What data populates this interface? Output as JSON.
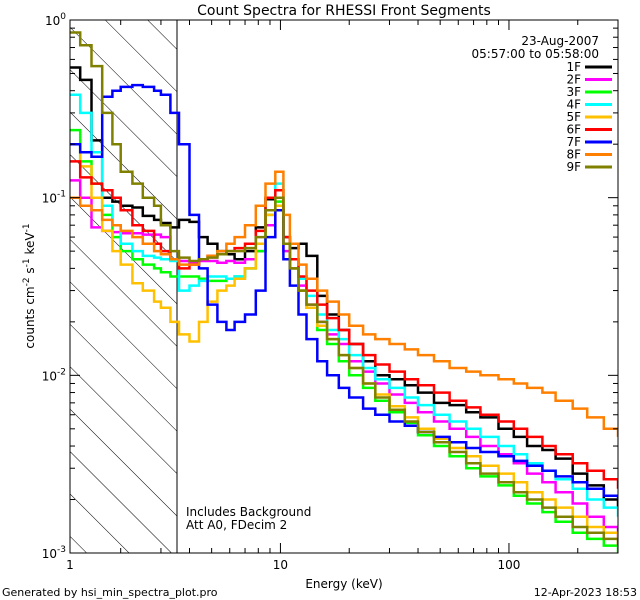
{
  "chart_data": {
    "type": "line",
    "title": "Count Spectra for RHESSI Front Segments",
    "xlabel": "Energy (keV)",
    "ylabel_parts": [
      "counts cm",
      "-2",
      " s",
      "-1",
      " keV",
      "-1"
    ],
    "xscale": "log",
    "yscale": "log",
    "xlim": [
      1.2,
      300
    ],
    "ylim": [
      0.001,
      1
    ],
    "x_tick_labels": [
      {
        "value": 1,
        "label": "1"
      },
      {
        "value": 10,
        "label": "10"
      },
      {
        "value": 100,
        "label": "100"
      }
    ],
    "y_tick_labels": [
      {
        "value": 1,
        "label": "10",
        "exp": "0"
      },
      {
        "value": 0.1,
        "label": "10",
        "exp": "-1"
      },
      {
        "value": 0.01,
        "label": "10",
        "exp": "-2"
      },
      {
        "value": 0.001,
        "label": "10",
        "exp": "-3"
      }
    ],
    "shaded_region": {
      "from": 1.2,
      "to": 3.0,
      "pattern": "diagonal-hatch"
    },
    "legend_header": [
      "23-Aug-2007",
      "05:57:00 to 05:58:00"
    ],
    "legend_position": "top-right",
    "annotations": [
      "Includes Background",
      "Att A0, FDecim 2"
    ],
    "footer_left": "Generated by hsi_min_spectra_plot.pro",
    "footer_right": "12-Apr-2023 18:53",
    "series": [
      {
        "name": "1F",
        "color": "#000000",
        "x": [
          1.2,
          1.33,
          1.49,
          1.66,
          1.84,
          2.0,
          2.25,
          2.5,
          2.8,
          3.0,
          3.3,
          3.6,
          4.0,
          4.4,
          4.8,
          5.3,
          5.8,
          6.3,
          7.0,
          7.8,
          8.6,
          9.5,
          10.3,
          11,
          12,
          13,
          14.5,
          16,
          18,
          20,
          23,
          26,
          30,
          35,
          40,
          47,
          55,
          65,
          75,
          90,
          105,
          120,
          140,
          160,
          190,
          220,
          260,
          300
        ],
        "values": [
          0.54,
          0.46,
          0.21,
          0.1,
          0.095,
          0.09,
          0.088,
          0.079,
          0.075,
          0.072,
          0.068,
          0.075,
          0.073,
          0.06,
          0.055,
          0.05,
          0.048,
          0.045,
          0.05,
          0.068,
          0.098,
          0.09,
          0.06,
          0.052,
          0.055,
          0.047,
          0.028,
          0.022,
          0.018,
          0.015,
          0.012,
          0.01,
          0.0095,
          0.0088,
          0.008,
          0.007,
          0.0068,
          0.0062,
          0.0058,
          0.005,
          0.0045,
          0.004,
          0.0038,
          0.0034,
          0.0028,
          0.0024,
          0.002,
          0.0018
        ]
      },
      {
        "name": "2F",
        "color": "#ff00ff",
        "x": [
          1.2,
          1.33,
          1.49,
          1.66,
          1.84,
          2.0,
          2.25,
          2.5,
          2.8,
          3.0,
          3.3,
          3.6,
          4.0,
          4.4,
          4.8,
          5.3,
          5.8,
          6.3,
          7.0,
          7.8,
          8.6,
          9.5,
          10.3,
          11,
          12,
          13,
          14.5,
          16,
          18,
          20,
          23,
          26,
          30,
          35,
          40,
          47,
          55,
          65,
          75,
          90,
          105,
          120,
          140,
          160,
          190,
          220,
          260,
          300
        ],
        "values": [
          0.125,
          0.1,
          0.068,
          0.065,
          0.064,
          0.063,
          0.063,
          0.062,
          0.062,
          0.06,
          0.045,
          0.044,
          0.043,
          0.044,
          0.044,
          0.043,
          0.044,
          0.043,
          0.045,
          0.05,
          0.07,
          0.09,
          0.05,
          0.04,
          0.032,
          0.025,
          0.02,
          0.017,
          0.015,
          0.012,
          0.0105,
          0.009,
          0.0078,
          0.007,
          0.0062,
          0.0055,
          0.005,
          0.0045,
          0.004,
          0.0036,
          0.0032,
          0.0028,
          0.0025,
          0.0022,
          0.0019,
          0.0016,
          0.0014,
          0.0012
        ]
      },
      {
        "name": "3F",
        "color": "#00ff00",
        "x": [
          1.2,
          1.33,
          1.49,
          1.66,
          1.84,
          2.0,
          2.25,
          2.5,
          2.8,
          3.0,
          3.3,
          3.6,
          4.0,
          4.4,
          4.8,
          5.3,
          5.8,
          6.3,
          7.0,
          7.8,
          8.6,
          9.5,
          10.3,
          11,
          12,
          13,
          14.5,
          16,
          18,
          20,
          23,
          26,
          30,
          35,
          40,
          47,
          55,
          65,
          75,
          90,
          105,
          120,
          140,
          160,
          190,
          220,
          260,
          300
        ],
        "values": [
          0.24,
          0.16,
          0.12,
          0.08,
          0.06,
          0.05,
          0.045,
          0.042,
          0.04,
          0.038,
          0.036,
          0.036,
          0.036,
          0.035,
          0.034,
          0.034,
          0.035,
          0.036,
          0.04,
          0.05,
          0.08,
          0.095,
          0.055,
          0.04,
          0.03,
          0.024,
          0.018,
          0.015,
          0.012,
          0.01,
          0.0085,
          0.0072,
          0.0062,
          0.0054,
          0.0046,
          0.004,
          0.0035,
          0.003,
          0.0027,
          0.0024,
          0.0021,
          0.0019,
          0.0017,
          0.0015,
          0.0013,
          0.0012,
          0.0011,
          0.001
        ]
      },
      {
        "name": "4F",
        "color": "#00ffff",
        "x": [
          1.2,
          1.33,
          1.49,
          1.66,
          1.84,
          2.0,
          2.25,
          2.5,
          2.8,
          3.0,
          3.3,
          3.6,
          4.0,
          4.4,
          4.8,
          5.3,
          5.8,
          6.3,
          7.0,
          7.8,
          8.6,
          9.5,
          10.3,
          11,
          12,
          13,
          14.5,
          16,
          18,
          20,
          23,
          26,
          30,
          35,
          40,
          47,
          55,
          65,
          75,
          90,
          105,
          120,
          140,
          160,
          190,
          220,
          260,
          300
        ],
        "values": [
          0.38,
          0.3,
          0.18,
          0.09,
          0.07,
          0.055,
          0.05,
          0.047,
          0.046,
          0.045,
          0.044,
          0.03,
          0.032,
          0.034,
          0.036,
          0.036,
          0.035,
          0.036,
          0.04,
          0.055,
          0.1,
          0.12,
          0.06,
          0.045,
          0.035,
          0.028,
          0.022,
          0.018,
          0.016,
          0.013,
          0.011,
          0.0095,
          0.0085,
          0.0075,
          0.0068,
          0.006,
          0.0055,
          0.005,
          0.0045,
          0.004,
          0.0036,
          0.0032,
          0.0029,
          0.0026,
          0.0023,
          0.002,
          0.0018,
          0.0016
        ]
      },
      {
        "name": "5F",
        "color": "#ffc000",
        "x": [
          1.2,
          1.33,
          1.49,
          1.66,
          1.84,
          2.0,
          2.25,
          2.5,
          2.8,
          3.0,
          3.3,
          3.6,
          4.0,
          4.4,
          4.8,
          5.3,
          5.8,
          6.3,
          7.0,
          7.8,
          8.6,
          9.5,
          10.3,
          11,
          12,
          13,
          14.5,
          16,
          18,
          20,
          23,
          26,
          30,
          35,
          40,
          47,
          55,
          65,
          75,
          90,
          105,
          120,
          140,
          160,
          190,
          220,
          260,
          300
        ],
        "values": [
          0.2,
          0.15,
          0.1,
          0.065,
          0.05,
          0.042,
          0.033,
          0.03,
          0.026,
          0.024,
          0.02,
          0.017,
          0.0155,
          0.02,
          0.026,
          0.03,
          0.032,
          0.035,
          0.04,
          0.055,
          0.08,
          0.09,
          0.055,
          0.04,
          0.03,
          0.024,
          0.019,
          0.016,
          0.013,
          0.011,
          0.009,
          0.0078,
          0.0067,
          0.0058,
          0.005,
          0.0044,
          0.0039,
          0.0035,
          0.0031,
          0.0028,
          0.0025,
          0.0022,
          0.002,
          0.0018,
          0.0016,
          0.0014,
          0.0013,
          0.0011
        ]
      },
      {
        "name": "6F",
        "color": "#ff0000",
        "x": [
          1.2,
          1.33,
          1.49,
          1.66,
          1.84,
          2.0,
          2.25,
          2.5,
          2.8,
          3.0,
          3.3,
          3.6,
          4.0,
          4.4,
          4.8,
          5.3,
          5.8,
          6.3,
          7.0,
          7.8,
          8.6,
          9.5,
          10.3,
          11,
          12,
          13,
          14.5,
          16,
          18,
          20,
          23,
          26,
          30,
          35,
          40,
          47,
          55,
          65,
          75,
          90,
          105,
          120,
          140,
          160,
          190,
          220,
          260,
          300
        ],
        "values": [
          0.16,
          0.13,
          0.12,
          0.11,
          0.1,
          0.085,
          0.07,
          0.065,
          0.055,
          0.05,
          0.045,
          0.04,
          0.042,
          0.045,
          0.047,
          0.048,
          0.05,
          0.052,
          0.055,
          0.065,
          0.1,
          0.11,
          0.06,
          0.045,
          0.036,
          0.03,
          0.025,
          0.021,
          0.018,
          0.015,
          0.013,
          0.0115,
          0.0105,
          0.0095,
          0.0088,
          0.008,
          0.0072,
          0.0066,
          0.006,
          0.0055,
          0.005,
          0.0045,
          0.004,
          0.0036,
          0.0032,
          0.0029,
          0.0026,
          0.0023
        ]
      },
      {
        "name": "7F",
        "color": "#0000ff",
        "x": [
          1.2,
          1.33,
          1.49,
          1.66,
          1.84,
          2.0,
          2.25,
          2.5,
          2.8,
          3.0,
          3.3,
          3.6,
          4.0,
          4.4,
          4.8,
          5.3,
          5.8,
          6.3,
          7.0,
          7.8,
          8.6,
          9.5,
          10.3,
          11,
          12,
          13,
          14.5,
          16,
          18,
          20,
          23,
          26,
          30,
          35,
          40,
          47,
          55,
          65,
          75,
          90,
          105,
          120,
          140,
          160,
          190,
          220,
          260,
          300
        ],
        "values": [
          0.2,
          0.18,
          0.17,
          0.37,
          0.4,
          0.42,
          0.43,
          0.42,
          0.4,
          0.38,
          0.3,
          0.2,
          0.08,
          0.04,
          0.025,
          0.02,
          0.018,
          0.02,
          0.022,
          0.03,
          0.06,
          0.085,
          0.045,
          0.032,
          0.022,
          0.016,
          0.012,
          0.01,
          0.0085,
          0.0075,
          0.0065,
          0.006,
          0.0055,
          0.0052,
          0.0048,
          0.0045,
          0.0042,
          0.0039,
          0.0037,
          0.0035,
          0.0033,
          0.0031,
          0.0029,
          0.0027,
          0.0025,
          0.0023,
          0.0021,
          0.002
        ]
      },
      {
        "name": "8F",
        "color": "#ff8000",
        "x": [
          1.2,
          1.33,
          1.49,
          1.66,
          1.84,
          2.0,
          2.25,
          2.5,
          2.8,
          3.0,
          3.3,
          3.6,
          4.0,
          4.4,
          4.8,
          5.3,
          5.8,
          6.3,
          7.0,
          7.8,
          8.6,
          9.5,
          10.3,
          11,
          12,
          13,
          14.5,
          16,
          18,
          20,
          23,
          26,
          30,
          35,
          40,
          47,
          55,
          65,
          75,
          90,
          105,
          120,
          140,
          160,
          190,
          220,
          260,
          300
        ],
        "values": [
          0.1,
          0.09,
          0.085,
          0.075,
          0.07,
          0.065,
          0.06,
          0.055,
          0.05,
          0.048,
          0.045,
          0.042,
          0.042,
          0.045,
          0.047,
          0.05,
          0.055,
          0.06,
          0.07,
          0.09,
          0.12,
          0.14,
          0.08,
          0.055,
          0.042,
          0.035,
          0.03,
          0.026,
          0.022,
          0.019,
          0.017,
          0.016,
          0.015,
          0.014,
          0.013,
          0.012,
          0.011,
          0.0105,
          0.01,
          0.0095,
          0.009,
          0.0085,
          0.008,
          0.0072,
          0.0065,
          0.0058,
          0.005,
          0.0045
        ]
      },
      {
        "name": "9F",
        "color": "#808000",
        "x": [
          1.2,
          1.33,
          1.49,
          1.66,
          1.84,
          2.0,
          2.25,
          2.5,
          2.8,
          3.0,
          3.3,
          3.6,
          4.0,
          4.4,
          4.8,
          5.3,
          5.8,
          6.3,
          7.0,
          7.8,
          8.6,
          9.5,
          10.3,
          11,
          12,
          13,
          14.5,
          16,
          18,
          20,
          23,
          26,
          30,
          35,
          40,
          47,
          55,
          65,
          75,
          90,
          105,
          120,
          140,
          160,
          190,
          220,
          260,
          300
        ],
        "values": [
          0.85,
          0.72,
          0.55,
          0.3,
          0.2,
          0.14,
          0.12,
          0.1,
          0.09,
          0.07,
          0.05,
          0.046,
          0.044,
          0.045,
          0.046,
          0.048,
          0.05,
          0.05,
          0.052,
          0.06,
          0.085,
          0.1,
          0.055,
          0.04,
          0.03,
          0.025,
          0.02,
          0.016,
          0.013,
          0.011,
          0.009,
          0.0075,
          0.0064,
          0.0055,
          0.0048,
          0.0042,
          0.0037,
          0.0032,
          0.0028,
          0.0025,
          0.0022,
          0.002,
          0.0018,
          0.0016,
          0.0014,
          0.0013,
          0.0012,
          0.0011
        ]
      }
    ]
  }
}
